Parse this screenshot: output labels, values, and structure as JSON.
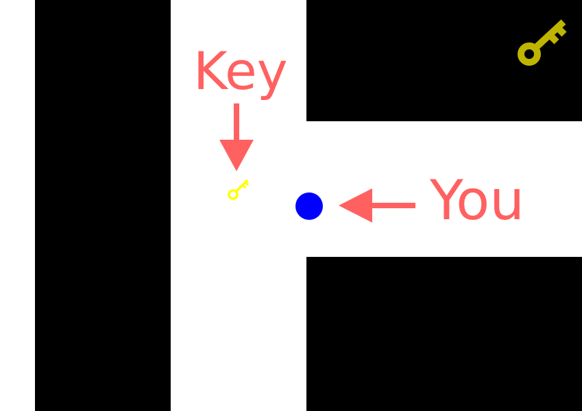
{
  "game": {
    "colors": {
      "wall": "#000000",
      "floor": "#ffffff",
      "player": "#0000ff",
      "key": "#ffff00",
      "inventory_key": "#bfb400",
      "annotation": "#ff6160"
    },
    "annotations": {
      "key_label": "Key",
      "player_label": "You"
    },
    "hud": {
      "inventory_icon": "key-icon"
    },
    "items": [
      {
        "type": "key",
        "icon": "key-icon"
      }
    ]
  }
}
